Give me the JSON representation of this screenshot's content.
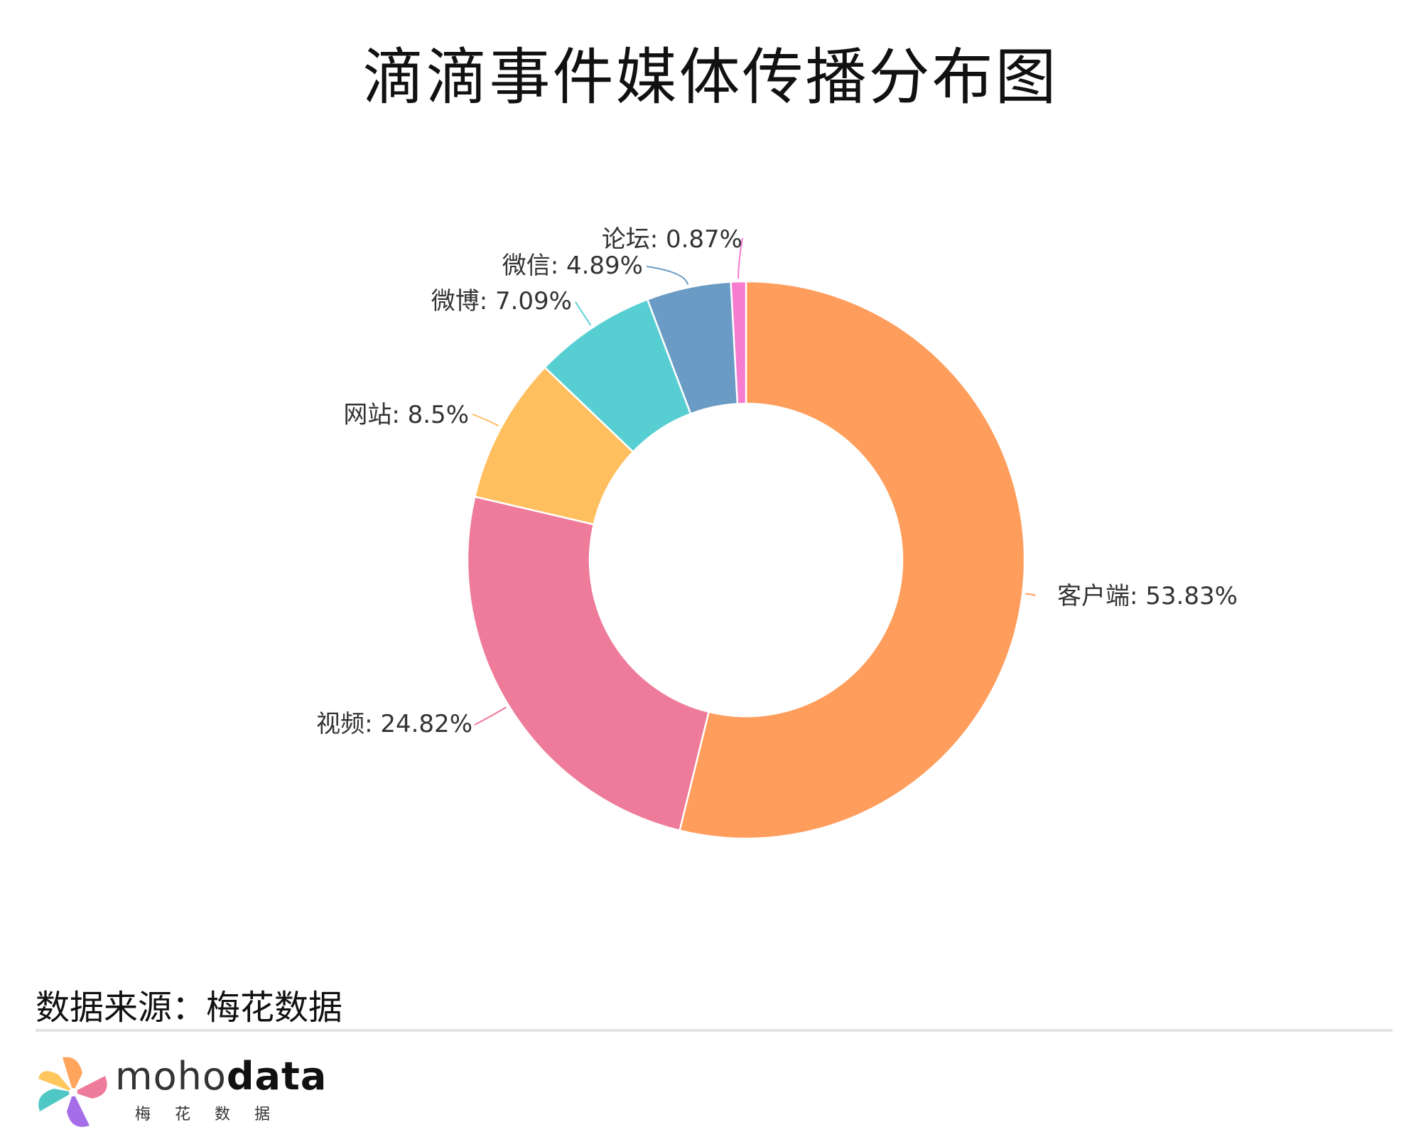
{
  "title": "滴滴事件媒体传播分布图",
  "source": "数据来源：梅花数据",
  "logo": {
    "text_light": "moho",
    "text_bold": "data",
    "cn": "梅花数据"
  },
  "chart_data": {
    "type": "pie",
    "donut": true,
    "title": "滴滴事件媒体传播分布图",
    "slices": [
      {
        "name": "客户端",
        "value": 53.83,
        "label": "客户端: 53.83%",
        "color": "#FF9D5C"
      },
      {
        "name": "视频",
        "value": 24.82,
        "label": "视频: 24.82%",
        "color": "#EE7B99"
      },
      {
        "name": "网站",
        "value": 8.5,
        "label": "网站: 8.5%",
        "color": "#FFBF5E"
      },
      {
        "name": "微博",
        "value": 7.09,
        "label": "微博: 7.09%",
        "color": "#57CFD2"
      },
      {
        "name": "微信",
        "value": 4.89,
        "label": "微信: 4.89%",
        "color": "#6A9BC4"
      },
      {
        "name": "论坛",
        "value": 0.87,
        "label": "论坛: 0.87%",
        "color": "#F77BCE"
      }
    ]
  }
}
